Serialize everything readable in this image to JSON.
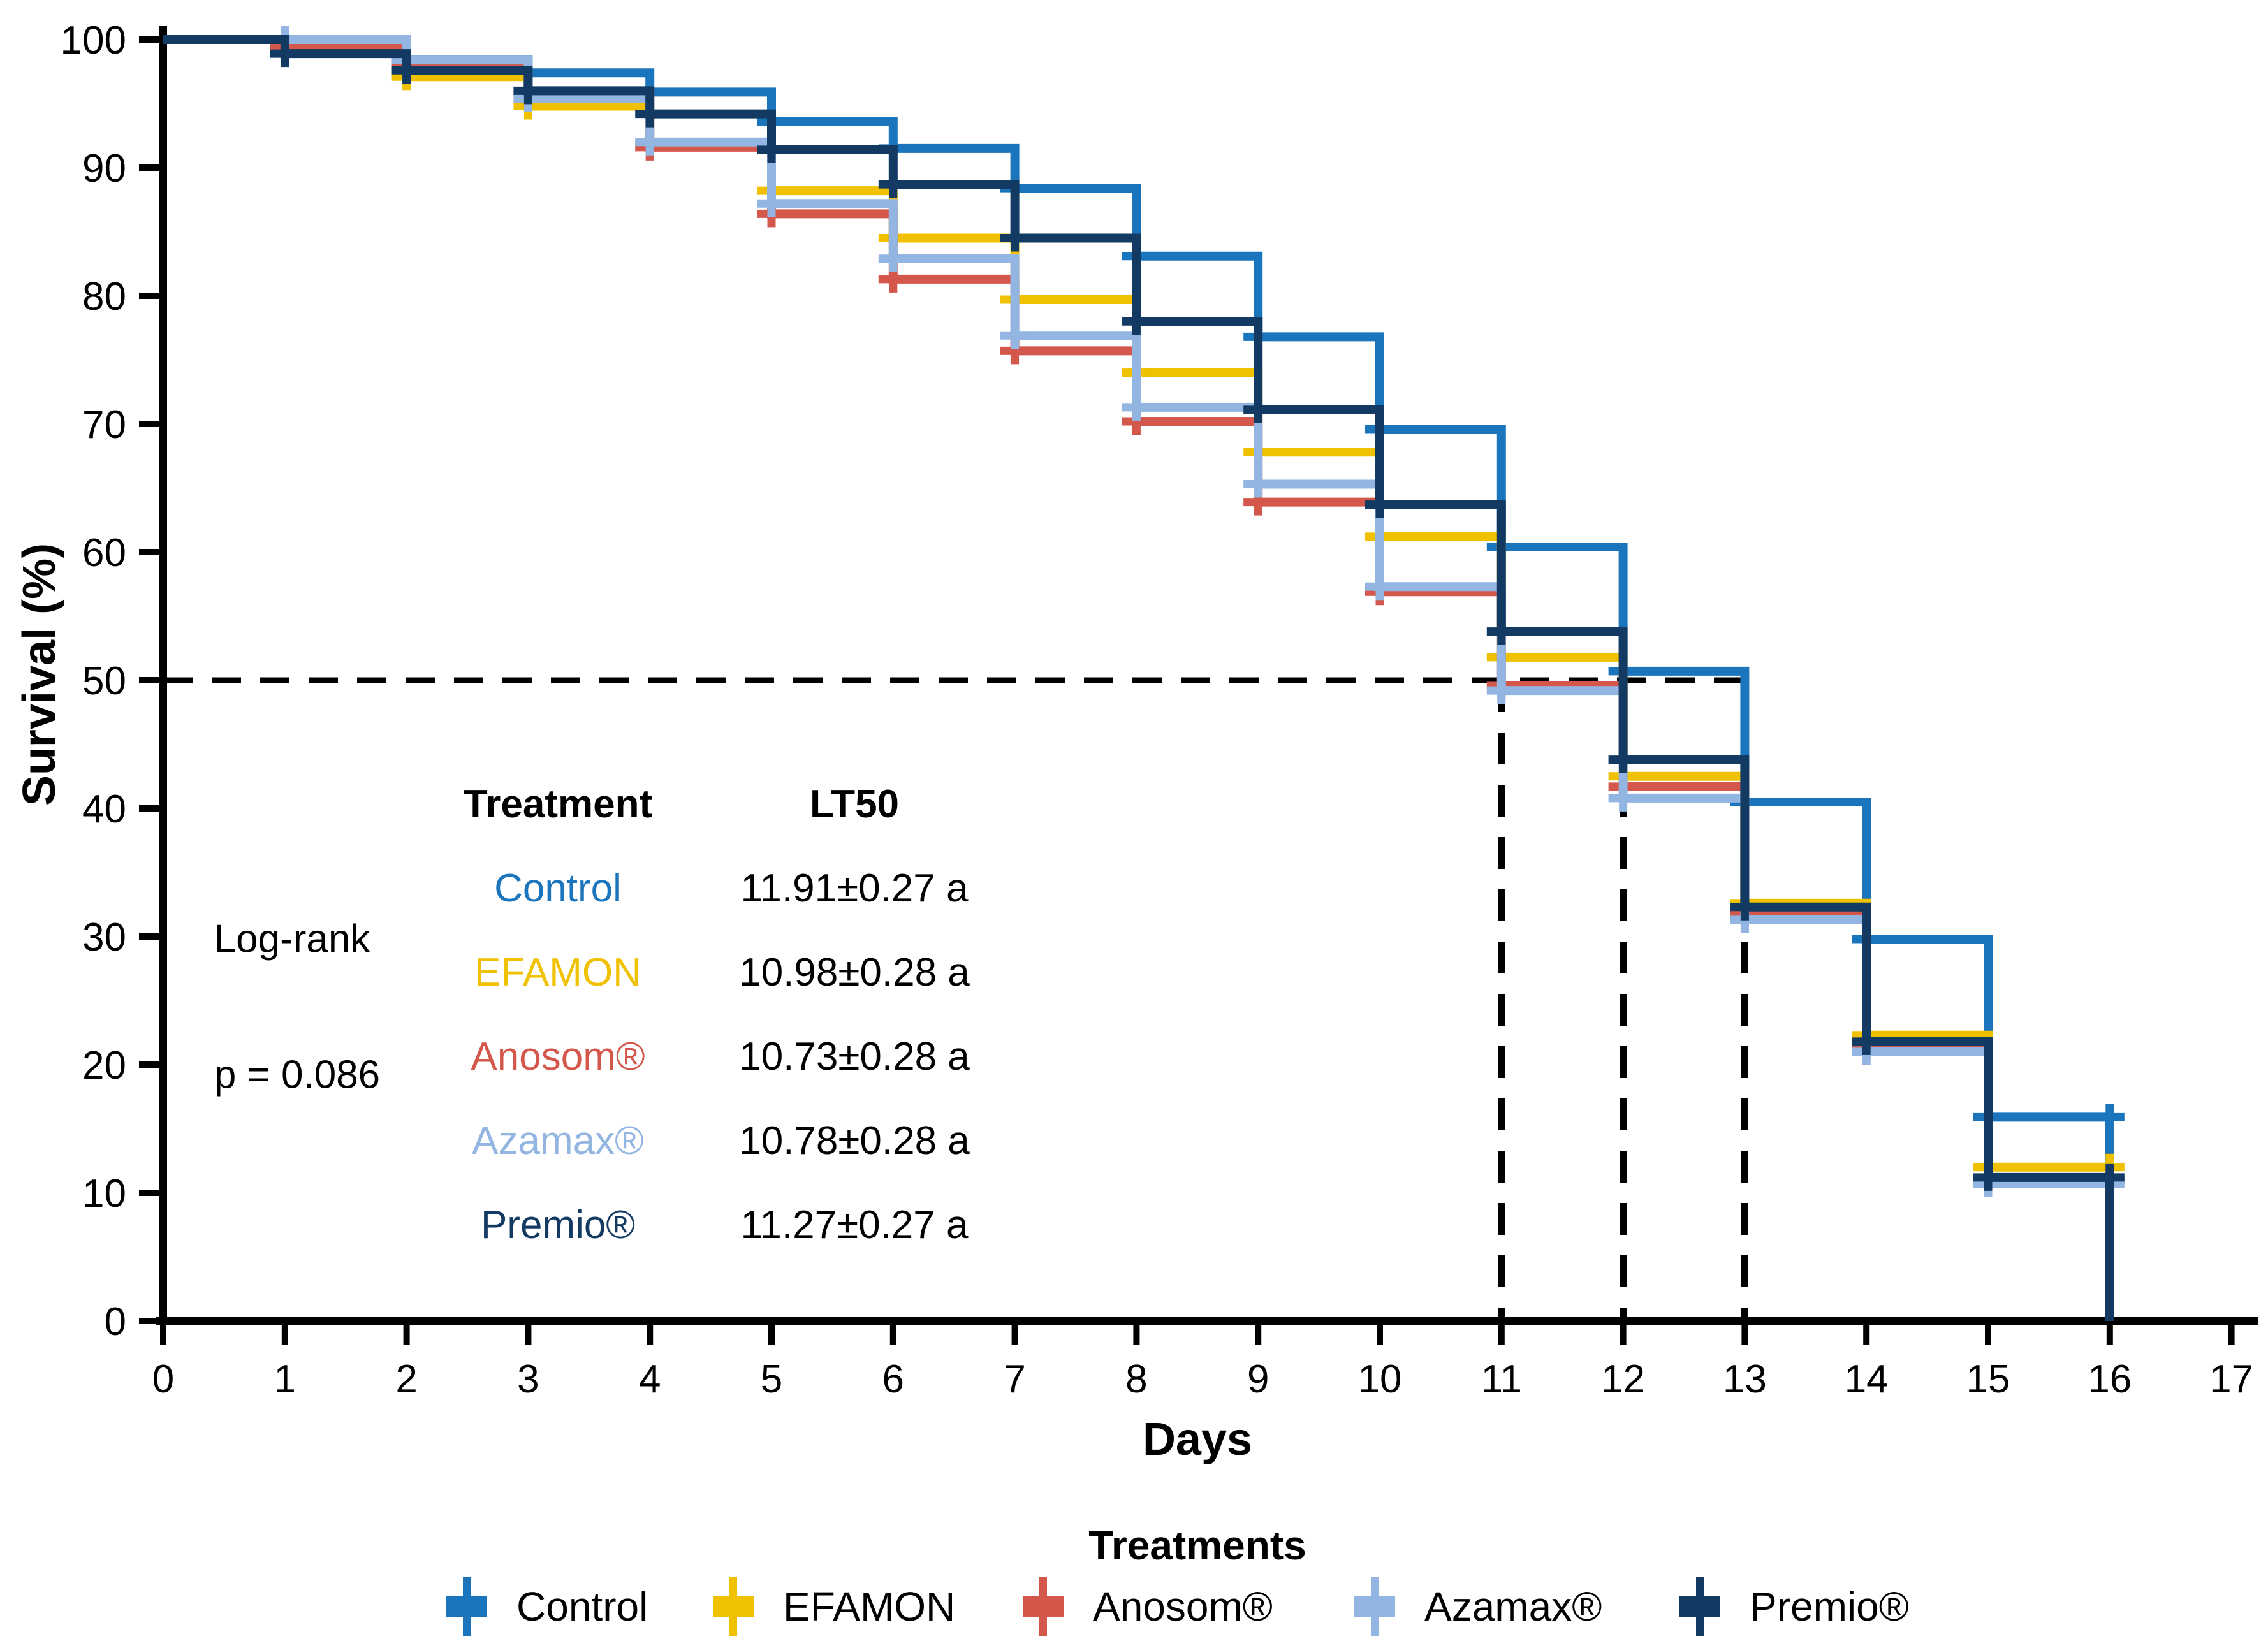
{
  "chart_data": {
    "type": "line",
    "subtype": "kaplan-meier-step-survival",
    "title": "",
    "xlabel": "Days",
    "ylabel": "Survival (%)",
    "xlim": [
      0,
      17
    ],
    "ylim": [
      0,
      100
    ],
    "x_ticks": [
      0,
      1,
      2,
      3,
      4,
      5,
      6,
      7,
      8,
      9,
      10,
      11,
      12,
      13,
      14,
      15,
      16,
      17
    ],
    "y_ticks": [
      0,
      10,
      20,
      30,
      40,
      50,
      60,
      70,
      80,
      90,
      100
    ],
    "grid": false,
    "legend_position": "bottom",
    "terminal_day": 16,
    "x": [
      0,
      1,
      2,
      3,
      4,
      5,
      6,
      7,
      8,
      9,
      10,
      11,
      12,
      13,
      14,
      15
    ],
    "series": [
      {
        "name": "Control",
        "color": "#1B75BC",
        "lt50": "11.91±0.27 a",
        "values": [
          100,
          99.4,
          98.4,
          97.4,
          95.9,
          93.6,
          91.5,
          88.4,
          83.1,
          76.8,
          69.6,
          60.4,
          50.7,
          40.5,
          29.8,
          15.9
        ]
      },
      {
        "name": "EFAMON",
        "color": "#EFC100",
        "lt50": "10.98±0.28 a",
        "values": [
          100,
          99.2,
          97.1,
          94.8,
          91.9,
          88.2,
          84.5,
          79.7,
          74.0,
          67.8,
          61.2,
          51.8,
          42.5,
          32.6,
          22.3,
          12.0
        ]
      },
      {
        "name": "Anosom®",
        "color": "#D4574C",
        "lt50": "10.73±0.28 a",
        "values": [
          100,
          99.4,
          98.0,
          95.7,
          91.6,
          86.4,
          81.3,
          75.7,
          70.2,
          63.9,
          56.9,
          49.6,
          41.7,
          31.9,
          21.4,
          11.0
        ]
      },
      {
        "name": "Azamax®",
        "color": "#92B5E1",
        "lt50": "10.78±0.28 a",
        "values": [
          100,
          100,
          98.4,
          95.4,
          92.0,
          87.2,
          82.9,
          76.9,
          71.3,
          65.3,
          57.3,
          49.2,
          40.8,
          31.3,
          21.0,
          10.7
        ]
      },
      {
        "name": "Premio®",
        "color": "#123A63",
        "lt50": "11.27±0.27 a",
        "values": [
          100,
          98.9,
          97.6,
          96.0,
          94.2,
          91.4,
          88.7,
          84.5,
          78.0,
          71.1,
          63.7,
          53.8,
          43.8,
          32.3,
          21.8,
          11.2
        ]
      }
    ],
    "reference_lines": {
      "horizontal_value": 50,
      "horizontal_span_days": [
        0,
        13
      ],
      "vertical_days": [
        11,
        12,
        13
      ],
      "color": "#000000"
    },
    "stats": {
      "test_label": "Log-rank",
      "p_label": "p = 0.086"
    },
    "table": {
      "col1_header": "Treatment",
      "col2_header": "LT50"
    },
    "legend": {
      "title": "Treatments"
    }
  }
}
